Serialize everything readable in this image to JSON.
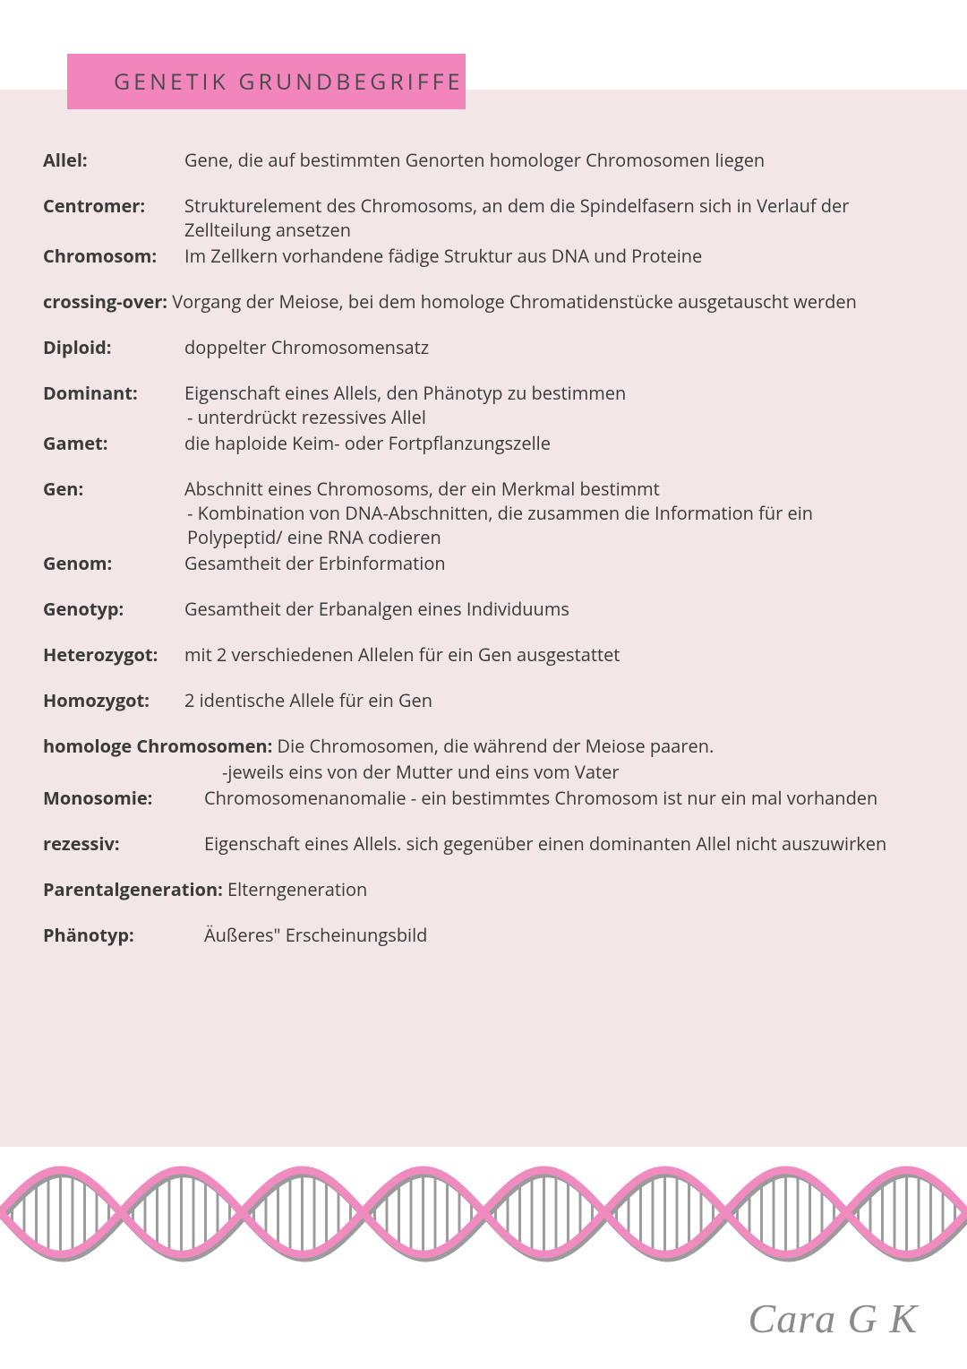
{
  "title": "GENETIK GRUNDBEGRIFFE",
  "colors": {
    "title_bg": "#f285bb",
    "content_bg": "#f2e7e6",
    "page_bg": "#ffffff",
    "text": "#3a3a3a",
    "dna_primary": "#f08bbf",
    "dna_shadow": "#9b9b9b",
    "dna_bars": "#9b9b9b"
  },
  "typography": {
    "title_fontsize": 25,
    "title_letterspacing": 4,
    "body_fontsize": 20,
    "author_fontsize": 46
  },
  "terms": {
    "allel": {
      "label": "Allel:",
      "def": "Gene, die auf bestimmten Genorten homologer Chromosomen liegen"
    },
    "centromer": {
      "label": "Centromer:",
      "def": "Strukturelement des Chromosoms, an dem die Spindelfasern sich in Verlauf der Zellteilung ansetzen"
    },
    "chromosom": {
      "label": "Chromosom:",
      "def": "Im Zellkern vorhandene fädige Struktur aus DNA und Proteine"
    },
    "crossing": {
      "label": "crossing-over:",
      "def": "Vorgang der Meiose, bei dem homologe Chromatidenstücke ausgetauscht werden"
    },
    "diploid": {
      "label": "Diploid:",
      "def": "doppelter Chromosomensatz"
    },
    "dominant": {
      "label": "Dominant:",
      "def": "Eigenschaft eines Allels, den Phänotyp zu bestimmen",
      "sub": " - unterdrückt rezessives Allel"
    },
    "gamet": {
      "label": "Gamet:",
      "def": "die haploide Keim-  oder Fortpflanzungszelle"
    },
    "gen": {
      "label": "Gen:",
      "def": "Abschnitt eines Chromosoms, der ein Merkmal bestimmt",
      "sub1": " - Kombination von DNA-Abschnitten, die zusammen die Information für ein",
      "sub2": "   Polypeptid/ eine RNA codieren"
    },
    "genom": {
      "label": "Genom:",
      "def": "Gesamtheit der Erbinformation"
    },
    "genotyp": {
      "label": "Genotyp:",
      "def": "Gesamtheit der Erbanalgen eines Individuums"
    },
    "heterozygot": {
      "label": "Heterozygot:",
      "def": "mit 2 verschiedenen Allelen für ein Gen ausgestattet"
    },
    "homozygot": {
      "label": "Homozygot:",
      "def": "2 identische Allele für ein Gen"
    },
    "homologe": {
      "label": "homologe Chromosomen:",
      "def": " Die Chromosomen, die während der Meiose paaren.",
      "sub": "-jeweils eins von der Mutter und eins vom Vater"
    },
    "monosomie": {
      "label": "Monosomie:",
      "def": "Chromosomenanomalie - ein bestimmtes Chromosom ist nur ein mal vorhanden"
    },
    "rezessiv": {
      "label": "rezessiv:",
      "def": "Eigenschaft eines Allels. sich gegenüber einen dominanten Allel nicht auszuwirken"
    },
    "parental": {
      "label": "Parentalgeneration:",
      "def": " Elterngeneration"
    },
    "phaenotyp": {
      "label": "Phänotyp:",
      "def": "Äußeres\" Erscheinungsbild"
    }
  },
  "author": "Cara G K",
  "dna": {
    "segments": 8,
    "height": 120,
    "strand_color": "#f08bbf",
    "shadow_color": "#9b9b9b",
    "bar_color": "#9b9b9b"
  }
}
